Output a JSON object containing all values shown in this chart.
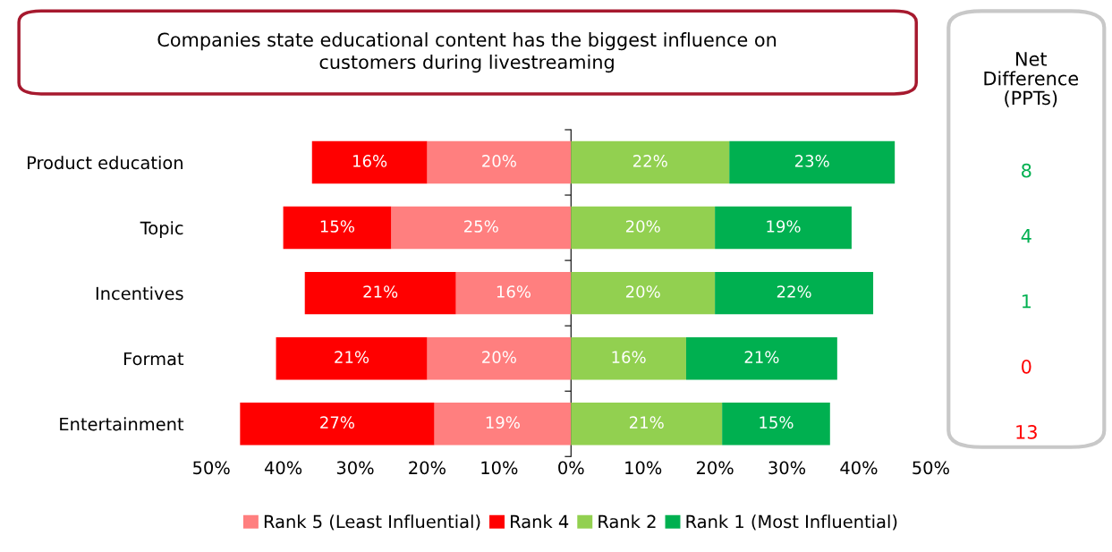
{
  "chart_data": [
    {
      "type": "bar",
      "orientation": "horizontal",
      "title": "Companies state educational content has the biggest influence on\ncustomers during livestreaming",
      "categories": [
        "Product education",
        "Topic",
        "Incentives",
        "Format",
        "Entertainment"
      ],
      "series": [
        {
          "name": "Rank 5 (Least Influential)",
          "color": "#ff7f7f",
          "values": [
            20,
            25,
            16,
            20,
            19
          ],
          "base": [
            -20,
            -25,
            -16,
            -20,
            -19
          ],
          "value_labels": [
            "20%",
            "25%",
            "16%",
            "20%",
            "19%"
          ]
        },
        {
          "name": "Rank 4",
          "color": "#ff0000",
          "values": [
            16,
            15,
            21,
            21,
            27
          ],
          "base": [
            -36,
            -40,
            -37,
            -41,
            -46
          ],
          "value_labels": [
            "16%",
            "15%",
            "21%",
            "21%",
            "27%"
          ]
        },
        {
          "name": "Rank 2",
          "color": "#92d050",
          "values": [
            22,
            20,
            20,
            16,
            21
          ],
          "base": [
            0,
            0,
            0,
            0,
            0
          ],
          "value_labels": [
            "22%",
            "20%",
            "20%",
            "16%",
            "21%"
          ]
        },
        {
          "name": "Rank 1 (Most Influential)",
          "color": "#00b050",
          "values": [
            23,
            19,
            22,
            21,
            15
          ],
          "base": [
            22,
            20,
            20,
            16,
            21
          ],
          "value_labels": [
            "23%",
            "19%",
            "22%",
            "21%",
            "15%"
          ]
        }
      ],
      "xlim": [
        -50,
        50
      ],
      "xticks": [
        {
          "value": -50,
          "label": "50%"
        },
        {
          "value": -40,
          "label": "40%"
        },
        {
          "value": -30,
          "label": "30%"
        },
        {
          "value": -20,
          "label": "20%"
        },
        {
          "value": -10,
          "label": "10%"
        },
        {
          "value": 0,
          "label": "0%"
        },
        {
          "value": 10,
          "label": "10%"
        },
        {
          "value": 20,
          "label": "20%"
        },
        {
          "value": 30,
          "label": "30%"
        },
        {
          "value": 40,
          "label": "40%"
        },
        {
          "value": 50,
          "label": "50%"
        }
      ],
      "legend": "bottom"
    },
    {
      "type": "other",
      "title": "Net\nDifference\n(PPTs)",
      "values": [
        8,
        4,
        1,
        0,
        13
      ],
      "colors": [
        "#00b050",
        "#00b050",
        "#00b050",
        "#ff0000",
        "#ff0000"
      ],
      "data_labels": true
    }
  ]
}
